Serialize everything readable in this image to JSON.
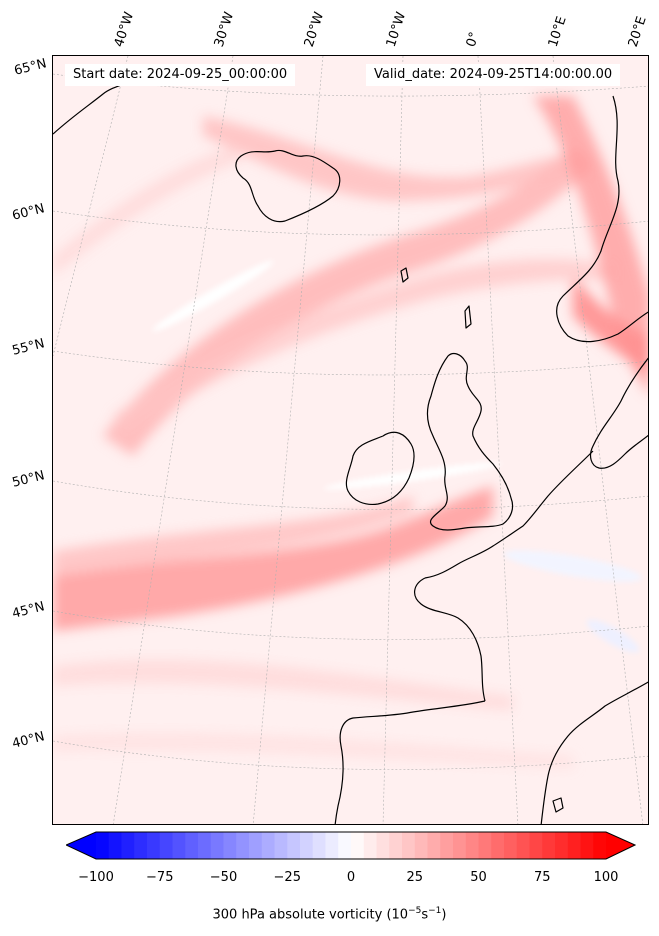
{
  "map": {
    "start_date": "Start date: 2024-09-25_00:00:00",
    "valid_date": "Valid_date: 2024-09-25T14:00:00.00",
    "lon_labels": [
      "40°W",
      "30°W",
      "20°W",
      "10°W",
      "0°",
      "10°E",
      "20°E"
    ],
    "lat_labels": [
      "65°N",
      "60°N",
      "55°N",
      "50°N",
      "45°N",
      "40°N"
    ]
  },
  "colorbar": {
    "title_prefix": "300 hPa absolute vorticity (10",
    "title_exp1": "−5",
    "title_mid": "s",
    "title_exp2": "−1",
    "title_suffix": ")",
    "ticks": [
      "−100",
      "−75",
      "−50",
      "−25",
      "0",
      "25",
      "50",
      "75",
      "100"
    ],
    "min": -100,
    "max": 100,
    "colors": {
      "negative": "#0000ff",
      "neutral": "#ffffff",
      "positive": "#ff0000"
    }
  }
}
